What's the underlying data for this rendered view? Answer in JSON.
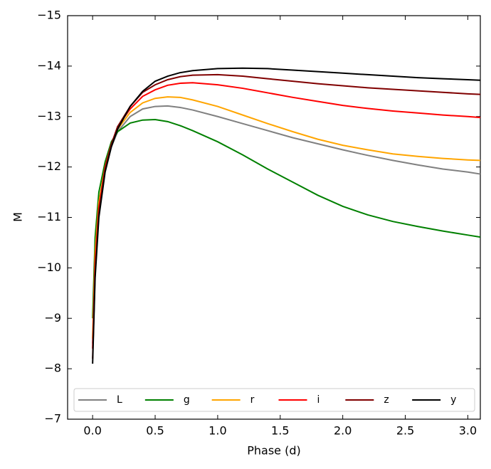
{
  "chart_data": {
    "type": "line",
    "xlabel": "Phase (d)",
    "ylabel": "M",
    "x": [
      0,
      0.02,
      0.05,
      0.1,
      0.15,
      0.2,
      0.3,
      0.4,
      0.5,
      0.6,
      0.7,
      0.8,
      1.0,
      1.2,
      1.4,
      1.6,
      1.8,
      2.0,
      2.2,
      2.4,
      2.6,
      2.8,
      3.0,
      3.1
    ],
    "series": [
      {
        "name": "L",
        "color": "#808080",
        "values": [
          -8.5,
          -10.2,
          -11.25,
          -11.95,
          -12.4,
          -12.7,
          -13.0,
          -13.15,
          -13.2,
          -13.21,
          -13.18,
          -13.13,
          -13.0,
          -12.86,
          -12.72,
          -12.58,
          -12.46,
          -12.34,
          -12.23,
          -12.13,
          -12.04,
          -11.96,
          -11.9,
          -11.86
        ]
      },
      {
        "name": "g",
        "color": "#008000",
        "values": [
          -9.0,
          -10.6,
          -11.5,
          -12.1,
          -12.5,
          -12.7,
          -12.87,
          -12.93,
          -12.94,
          -12.9,
          -12.82,
          -12.72,
          -12.5,
          -12.24,
          -11.96,
          -11.7,
          -11.44,
          -11.22,
          -11.05,
          -10.92,
          -10.82,
          -10.73,
          -10.65,
          -10.61
        ]
      },
      {
        "name": "r",
        "color": "#ffa500",
        "values": [
          -8.6,
          -10.3,
          -11.3,
          -12.0,
          -12.45,
          -12.75,
          -13.08,
          -13.27,
          -13.36,
          -13.39,
          -13.38,
          -13.33,
          -13.2,
          -13.03,
          -12.86,
          -12.7,
          -12.55,
          -12.43,
          -12.34,
          -12.26,
          -12.21,
          -12.17,
          -12.14,
          -12.13
        ]
      },
      {
        "name": "i",
        "color": "#ff0000",
        "values": [
          -8.4,
          -10.1,
          -11.2,
          -12.0,
          -12.45,
          -12.8,
          -13.15,
          -13.4,
          -13.53,
          -13.62,
          -13.66,
          -13.67,
          -13.63,
          -13.56,
          -13.47,
          -13.38,
          -13.3,
          -13.22,
          -13.16,
          -13.11,
          -13.07,
          -13.03,
          -13.0,
          -12.98
        ]
      },
      {
        "name": "z",
        "color": "#800000",
        "values": [
          -8.2,
          -9.9,
          -11.1,
          -11.95,
          -12.45,
          -12.8,
          -13.2,
          -13.48,
          -13.63,
          -13.73,
          -13.79,
          -13.82,
          -13.83,
          -13.8,
          -13.75,
          -13.7,
          -13.65,
          -13.61,
          -13.57,
          -13.54,
          -13.51,
          -13.48,
          -13.45,
          -13.44
        ]
      },
      {
        "name": "y",
        "color": "#000000",
        "values": [
          -8.1,
          -9.8,
          -11.0,
          -11.9,
          -12.4,
          -12.75,
          -13.2,
          -13.5,
          -13.7,
          -13.8,
          -13.87,
          -13.91,
          -13.95,
          -13.96,
          -13.95,
          -13.92,
          -13.89,
          -13.86,
          -13.83,
          -13.8,
          -13.77,
          -13.75,
          -13.73,
          -13.72
        ]
      }
    ],
    "xlim": [
      -0.2,
      3.1
    ],
    "ylim": [
      -7,
      -15
    ],
    "xticks": [
      {
        "value": 0,
        "label": "0.0"
      },
      0.5,
      {
        "value": 1,
        "label": "1.0"
      },
      1.5,
      {
        "value": 2,
        "label": "2.0"
      },
      2.5,
      {
        "value": 3,
        "label": "3.0"
      }
    ],
    "yticks": [
      {
        "value": -7,
        "label": "−7"
      },
      {
        "value": -8,
        "label": "−8"
      },
      {
        "value": -9,
        "label": "−9"
      },
      {
        "value": -10,
        "label": "−10"
      },
      {
        "value": -11,
        "label": "−11"
      },
      {
        "value": -12,
        "label": "−12"
      },
      {
        "value": -13,
        "label": "−13"
      },
      {
        "value": -14,
        "label": "−14"
      },
      {
        "value": -15,
        "label": "−15"
      }
    ],
    "legend": "lower center",
    "grid": false
  }
}
